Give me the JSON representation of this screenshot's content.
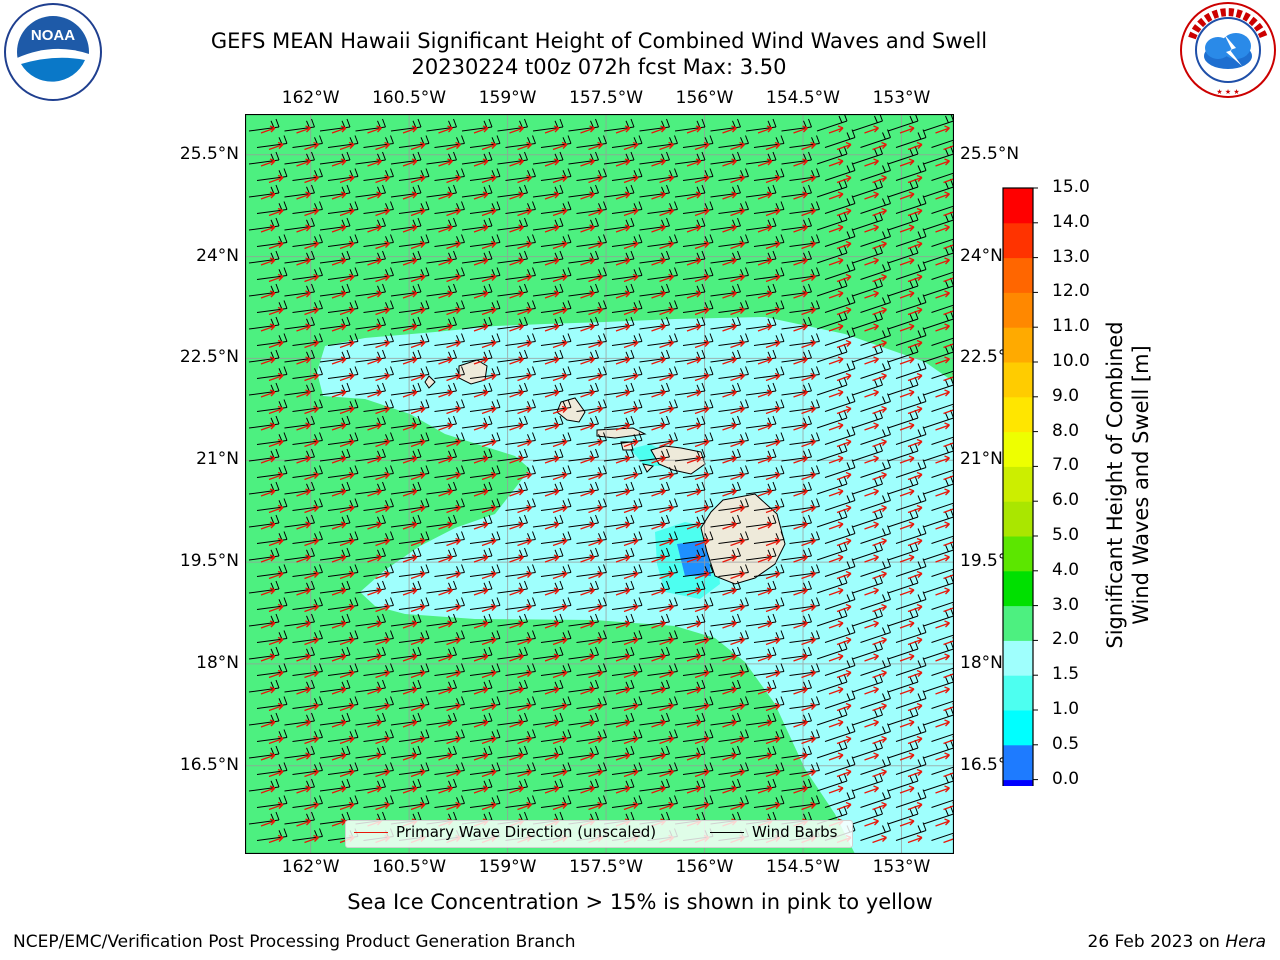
{
  "header": {
    "title_line1": "GEFS MEAN Hawaii Significant Height of Combined Wind Waves and Swell",
    "title_line2": "20230224 t00z 072h fcst   Max: 3.50"
  },
  "logos": {
    "left": {
      "icon": "noaa-logo",
      "text": "NOAA",
      "ring_text": "NATIONAL OCEANIC AND ATMOSPHERIC ADMINISTRATION · U.S. DEPARTMENT OF COMMERCE"
    },
    "right": {
      "icon": "nws-logo",
      "ring_text": "NATIONAL WEATHER SERVICE"
    }
  },
  "map": {
    "lon_labels": [
      "162°W",
      "160.5°W",
      "159°W",
      "157.5°W",
      "156°W",
      "154.5°W",
      "153°W"
    ],
    "lat_labels": [
      "25.5°N",
      "24°N",
      "22.5°N",
      "21°N",
      "19.5°N",
      "18°N",
      "16.5°N"
    ],
    "lon_values": [
      -162,
      -160.5,
      -159,
      -157.5,
      -156,
      -154.5,
      -153
    ],
    "lat_values": [
      25.5,
      24,
      22.5,
      21,
      19.5,
      18,
      16.5
    ],
    "extent": {
      "lon_min": -163,
      "lon_max": -152.2,
      "lat_min": 15.2,
      "lat_max": 26.1
    },
    "colors": {
      "green_band": "#4df080",
      "light_cyan_band": "#9ffffd",
      "cyan_band": "#4dfff0",
      "deep_band": "#1e90ff",
      "land": "#eeeada",
      "wind_barb": "#000000",
      "wave_arrow": "#e8170a"
    }
  },
  "legend": {
    "primary_wave": "Primary Wave Direction (unscaled)",
    "wind_barbs": "Wind Barbs"
  },
  "colorbar": {
    "label_line1": "Significant Height of Combined",
    "label_line2": "Wind Waves and Swell [m]",
    "ticks": [
      "15.0",
      "14.0",
      "13.0",
      "12.0",
      "11.0",
      "10.0",
      "9.0",
      "8.0",
      "7.0",
      "6.0",
      "5.0",
      "4.0",
      "3.0",
      "2.0",
      "1.5",
      "1.0",
      "0.5",
      "0.0"
    ],
    "colors_bottom_to_top": [
      "#0000ff",
      "#1e7bff",
      "#00ffff",
      "#4dfff0",
      "#9ffffd",
      "#4df080",
      "#00e000",
      "#5ce600",
      "#aae600",
      "#ccee00",
      "#eeff00",
      "#ffe600",
      "#ffcc00",
      "#ffaa00",
      "#ff8800",
      "#ff6600",
      "#ff3300",
      "#ff0000"
    ]
  },
  "footer": {
    "sea_ice_note": "Sea Ice Concentration > 15% is shown in pink to yellow",
    "left_text": "NCEP/EMC/Verification Post Processing Product Generation Branch",
    "right_text_prefix": "26 Feb 2023 on ",
    "right_text_host": "Hera"
  }
}
